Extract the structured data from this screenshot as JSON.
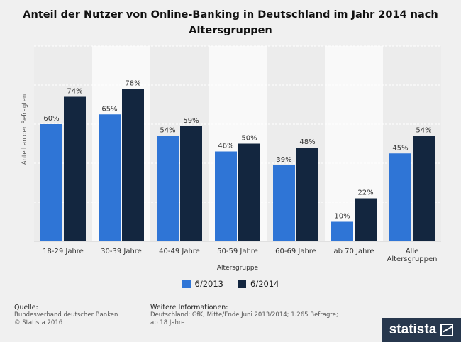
{
  "title": "Anteil der Nutzer von Online-Banking in Deutschland im Jahr 2014 nach Altersgruppen",
  "chart_data": {
    "type": "bar",
    "title": "Anteil der Nutzer von Online-Banking in Deutschland im Jahr 2014 nach Altersgruppen",
    "xlabel": "Altersgruppe",
    "ylabel": "Anteil an der Befragten",
    "ylim": [
      0,
      100
    ],
    "grid": true,
    "legend_position": "bottom",
    "categories": [
      "18-29 Jahre",
      "30-39 Jahre",
      "40-49 Jahre",
      "50-59 Jahre",
      "60-69 Jahre",
      "ab 70 Jahre",
      "Alle Altersgruppen"
    ],
    "category_lines": [
      [
        "18-29 Jahre"
      ],
      [
        "30-39 Jahre"
      ],
      [
        "40-49 Jahre"
      ],
      [
        "50-59 Jahre"
      ],
      [
        "60-69 Jahre"
      ],
      [
        "ab 70 Jahre"
      ],
      [
        "Alle",
        "Altersgruppen"
      ]
    ],
    "series": [
      {
        "name": "6/2013",
        "values": [
          60,
          65,
          54,
          46,
          39,
          10,
          45
        ],
        "labels": [
          "60%",
          "65%",
          "54%",
          "46%",
          "39%",
          "10%",
          "45%"
        ],
        "color": "#2f75d6"
      },
      {
        "name": "6/2014",
        "values": [
          74,
          78,
          59,
          50,
          48,
          22,
          54
        ],
        "labels": [
          "74%",
          "78%",
          "59%",
          "50%",
          "48%",
          "22%",
          "54%"
        ],
        "color": "#13263f"
      }
    ]
  },
  "footer": {
    "source_heading": "Quelle:",
    "source_line1": "Bundesverband deutscher Banken",
    "source_line2": "© Statista 2016",
    "info_heading": "Weitere Informationen:",
    "info_line1": "Deutschland; GfK; Mitte/Ende Juni 2013/2014; 1.265 Befragte;",
    "info_line2": "ab 18 Jahre"
  },
  "brand": "statista"
}
